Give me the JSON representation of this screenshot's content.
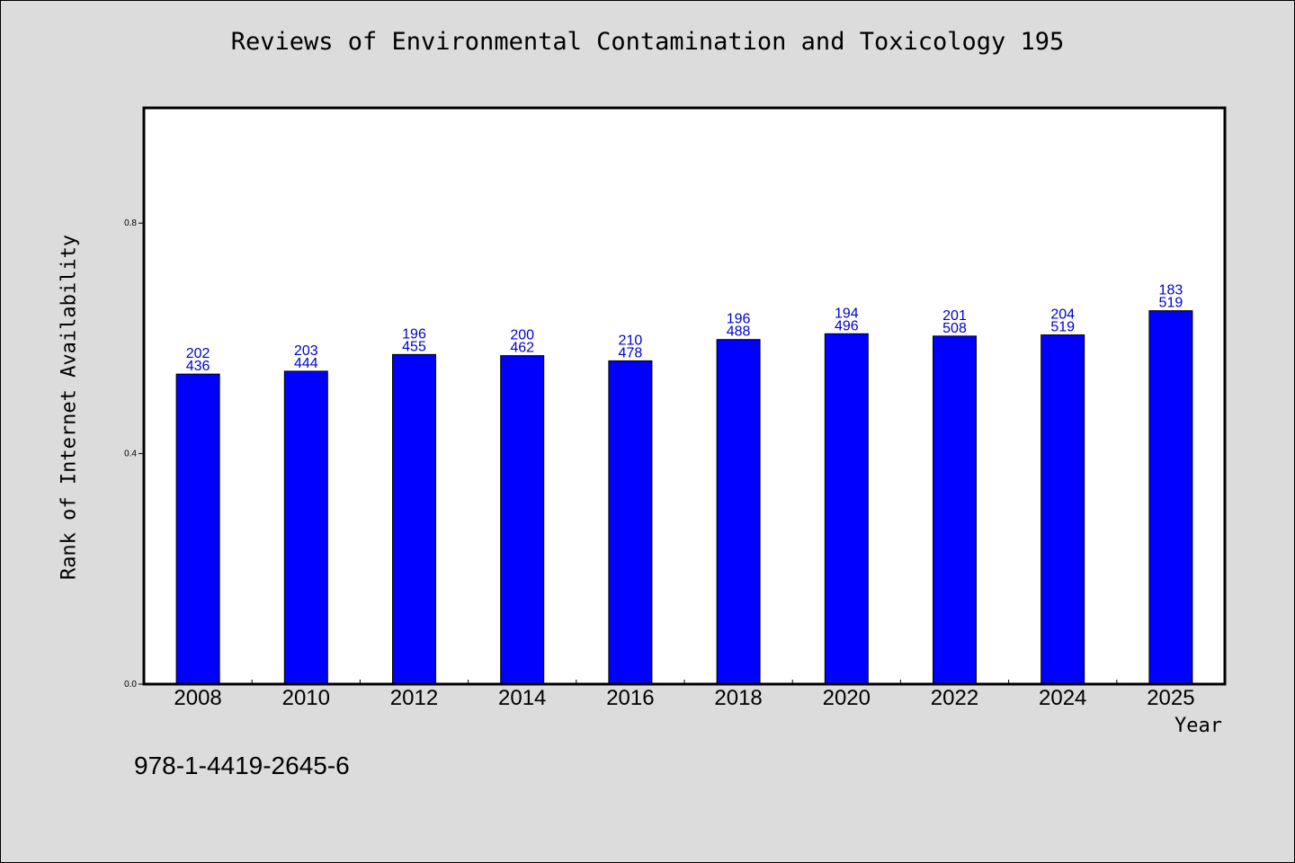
{
  "chart_data": {
    "type": "bar",
    "title": "Reviews of Environmental Contamination and Toxicology 195",
    "xlabel": "Year",
    "ylabel": "Rank of Internet Availability",
    "categories": [
      "2008",
      "2010",
      "2012",
      "2014",
      "2016",
      "2018",
      "2020",
      "2022",
      "2024",
      "2025"
    ],
    "values": [
      0.538,
      0.543,
      0.572,
      0.57,
      0.561,
      0.598,
      0.608,
      0.604,
      0.606,
      0.648
    ],
    "data_labels": [
      [
        "202",
        "436"
      ],
      [
        "203",
        "444"
      ],
      [
        "196",
        "455"
      ],
      [
        "200",
        "462"
      ],
      [
        "210",
        "478"
      ],
      [
        "196",
        "488"
      ],
      [
        "194",
        "496"
      ],
      [
        "201",
        "508"
      ],
      [
        "204",
        "519"
      ],
      [
        "183",
        "519"
      ]
    ],
    "ylim": [
      0.0,
      1.0
    ],
    "yticks": [
      "0.0",
      "0.4",
      "0.8"
    ],
    "grid": false,
    "colors": {
      "bar": "#0000ff",
      "label": "#0000cc"
    }
  },
  "footer": {
    "isbn": "978-1-4419-2645-6"
  }
}
